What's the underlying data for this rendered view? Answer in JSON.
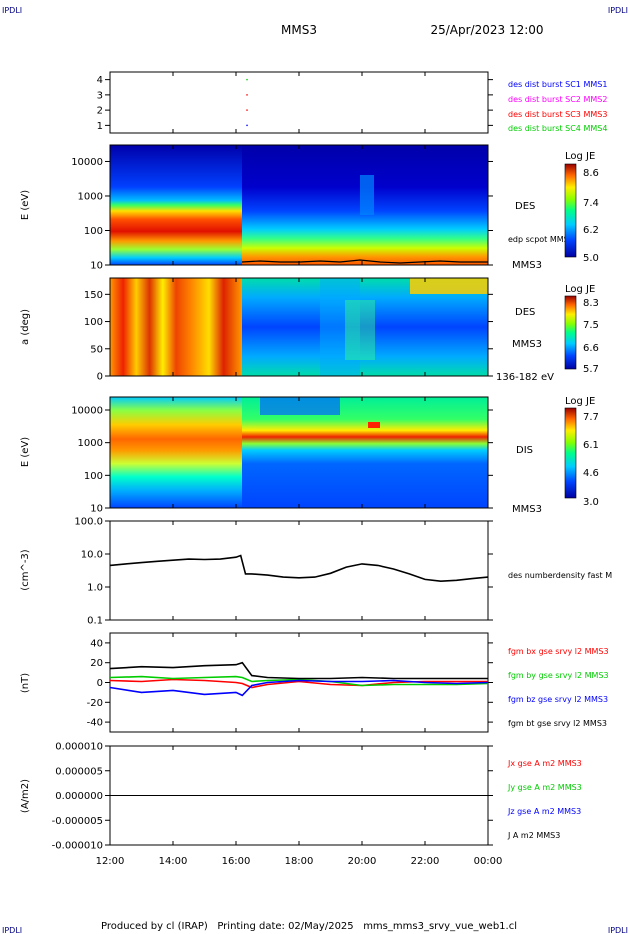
{
  "header": {
    "corner_left": "IPDLI",
    "corner_right": "IPDLI",
    "spacecraft": "MMS3",
    "date_time": "25/Apr/2023 12:00"
  },
  "footer": {
    "credit": "Produced by cl (IRAP)   Printing date: 02/May/2025   mms_mms3_srvy_vue_web1.cl",
    "corner_left": "IPDLI",
    "corner_right": "IPDLI"
  },
  "x_axis": {
    "ticks": [
      "12:00",
      "14:00",
      "16:00",
      "18:00",
      "20:00",
      "22:00",
      "00:00"
    ],
    "hours": [
      12,
      14,
      16,
      18,
      20,
      22,
      24
    ],
    "range_hours": [
      12,
      24
    ]
  },
  "colors": {
    "black": "#000000",
    "blue": "#0000ff",
    "red": "#ff0000",
    "green": "#00cc00",
    "magenta": "#ff00ff",
    "navy": "#000080"
  },
  "chart_data": [
    {
      "type": "scatter",
      "panel": "burst",
      "ylim": [
        0.5,
        4.5
      ],
      "yticks": [
        "1",
        "2",
        "3",
        "4"
      ],
      "legend": [
        {
          "label": "des dist burst SC1 MMS1",
          "color": "#0000ff"
        },
        {
          "label": "des dist burst SC2 MMS2",
          "color": "#ff00ff"
        },
        {
          "label": "des dist burst SC3 MMS3",
          "color": "#ff0000"
        },
        {
          "label": "des dist burst SC4 MMS4",
          "color": "#00cc00"
        }
      ],
      "points": [
        {
          "x": 16.35,
          "y": 4,
          "color": "#00cc00"
        },
        {
          "x": 16.35,
          "y": 3,
          "color": "#ff0000"
        },
        {
          "x": 16.35,
          "y": 2,
          "color": "#ff0000"
        },
        {
          "x": 16.35,
          "y": 1,
          "color": "#0000ff"
        }
      ]
    },
    {
      "type": "heatmap",
      "panel": "des_energy",
      "ylabel": "E (eV)",
      "yscale": "log",
      "ylim": [
        10,
        30000
      ],
      "yticks": [
        "10",
        "100",
        "1000",
        "10000"
      ],
      "instrument": "DES",
      "spacecraft": "MMS3",
      "overlay_label": "edp scpot MMS3",
      "colorbar": {
        "title": "Log JE",
        "ticks": [
          "8.6",
          "7.4",
          "6.2",
          "5.0"
        ],
        "range": [
          5.0,
          8.6
        ]
      }
    },
    {
      "type": "heatmap",
      "panel": "des_pitch",
      "ylabel": "a (deg)",
      "ylim": [
        0,
        180
      ],
      "yticks": [
        "0",
        "50",
        "100",
        "150"
      ],
      "instrument": "DES",
      "spacecraft": "MMS3",
      "energy_range": "136-182 eV",
      "colorbar": {
        "title": "Log JE",
        "ticks": [
          "8.3",
          "7.5",
          "6.6",
          "5.7"
        ],
        "range": [
          5.7,
          8.3
        ]
      }
    },
    {
      "type": "heatmap",
      "panel": "dis_energy",
      "ylabel": "E (eV)",
      "yscale": "log",
      "ylim": [
        10,
        25000
      ],
      "yticks": [
        "10",
        "100",
        "1000",
        "10000"
      ],
      "instrument": "DIS",
      "spacecraft": "MMS3",
      "colorbar": {
        "title": "Log JE",
        "ticks": [
          "7.7",
          "6.1",
          "4.6",
          "3.0"
        ],
        "range": [
          3.0,
          7.7
        ]
      }
    },
    {
      "type": "line",
      "panel": "density",
      "ylabel": "(cm^-3)",
      "yscale": "log",
      "ylim": [
        0.1,
        100
      ],
      "yticks": [
        "100.0",
        "10.0",
        "1.0",
        "0.1"
      ],
      "series": [
        {
          "name": "des numberdensity fast M",
          "color": "#000000",
          "x": [
            12,
            12.5,
            13,
            13.5,
            14,
            14.5,
            15,
            15.5,
            16,
            16.15,
            16.3,
            16.5,
            17,
            17.5,
            18,
            18.5,
            19,
            19.5,
            20,
            20.5,
            21,
            21.5,
            22,
            22.5,
            23,
            23.5,
            24
          ],
          "y": [
            4.5,
            5.0,
            5.5,
            6.0,
            6.5,
            7.0,
            6.8,
            7.0,
            8.0,
            9.0,
            2.5,
            2.5,
            2.3,
            2.0,
            1.9,
            2.0,
            2.6,
            4.0,
            5.0,
            4.5,
            3.5,
            2.5,
            1.7,
            1.5,
            1.6,
            1.8,
            2.0
          ]
        }
      ]
    },
    {
      "type": "line",
      "panel": "magnetic_field",
      "ylabel": "(nT)",
      "ylim": [
        -50,
        50
      ],
      "yticks": [
        "40",
        "20",
        "0",
        "-20",
        "-40"
      ],
      "series": [
        {
          "name": "fgm bx gse srvy l2 MMS3",
          "color": "#ff0000",
          "x": [
            12,
            13,
            14,
            15,
            16,
            16.2,
            16.5,
            17,
            18,
            19,
            20,
            21,
            22,
            23,
            24
          ],
          "y": [
            2,
            1,
            3,
            2,
            0,
            -1,
            -5,
            -2,
            1,
            -2,
            -3,
            0,
            1,
            1,
            1
          ]
        },
        {
          "name": "fgm by gse srvy l2 MMS3",
          "color": "#00cc00",
          "x": [
            12,
            13,
            14,
            15,
            16,
            16.2,
            16.5,
            17,
            18,
            19,
            20,
            21,
            22,
            23,
            24
          ],
          "y": [
            5,
            6,
            4,
            5,
            6,
            5,
            1,
            2,
            3,
            1,
            -3,
            -2,
            -2,
            -2,
            -1
          ]
        },
        {
          "name": "fgm bz gse srvy l2 MMS3",
          "color": "#0000ff",
          "x": [
            12,
            13,
            14,
            15,
            16,
            16.2,
            16.5,
            17,
            18,
            19,
            20,
            21,
            22,
            23,
            24
          ],
          "y": [
            -5,
            -10,
            -8,
            -12,
            -10,
            -13,
            -3,
            0,
            2,
            1,
            1,
            2,
            0,
            -1,
            0
          ]
        },
        {
          "name": "fgm bt gse srvy l2 MMS3",
          "color": "#000000",
          "x": [
            12,
            13,
            14,
            15,
            16,
            16.2,
            16.5,
            17,
            18,
            19,
            20,
            21,
            22,
            23,
            24
          ],
          "y": [
            14,
            16,
            15,
            17,
            18,
            20,
            7,
            5,
            4,
            4,
            5,
            4,
            4,
            4,
            4
          ]
        }
      ]
    },
    {
      "type": "line",
      "panel": "current_density",
      "ylabel": "(A/m2)",
      "ylim": [
        -1e-05,
        1e-05
      ],
      "yticks": [
        "0.000010",
        "0.000005",
        "0.000000",
        "-0.000005",
        "-0.000010"
      ],
      "series": [
        {
          "name": "Jx gse A m2 MMS3",
          "color": "#ff0000",
          "x": [
            12,
            24
          ],
          "y": [
            0,
            0
          ]
        },
        {
          "name": "Jy gse A m2 MMS3",
          "color": "#00cc00",
          "x": [
            12,
            24
          ],
          "y": [
            0,
            0
          ]
        },
        {
          "name": "Jz gse A m2 MMS3",
          "color": "#0000ff",
          "x": [
            12,
            24
          ],
          "y": [
            0,
            0
          ]
        },
        {
          "name": "J A m2 MMS3",
          "color": "#000000",
          "x": [
            12,
            24
          ],
          "y": [
            0,
            0
          ]
        }
      ]
    }
  ]
}
